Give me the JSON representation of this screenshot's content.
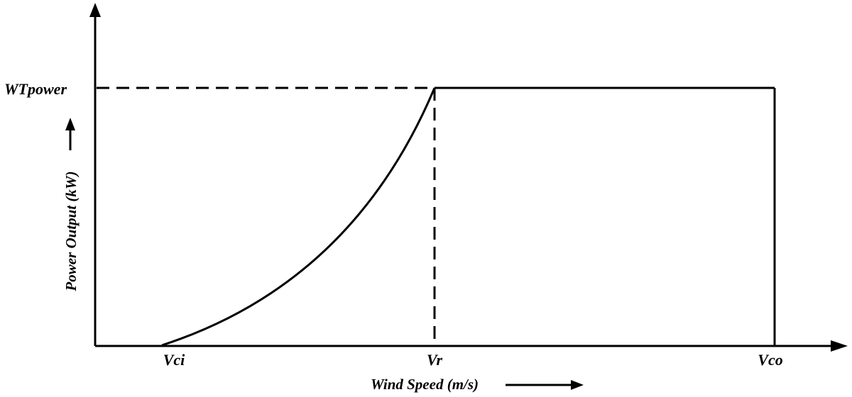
{
  "chart_data": {
    "type": "line",
    "title": "",
    "xlabel": "Wind Speed (m/s)",
    "ylabel": "Power Output (kW)",
    "x_ticks": [
      "Vci",
      "Vr",
      "Vco"
    ],
    "y_ticks": [
      "WTpower"
    ],
    "grid": false,
    "legend": "none",
    "series": [
      {
        "curve": "power-curve",
        "segments": [
          {
            "from": "Vci",
            "to": "Vr",
            "shape": "rising curve",
            "start_level": 0,
            "end_level": "WTpower"
          },
          {
            "from": "Vr",
            "to": "Vco",
            "shape": "constant",
            "level": "WTpower"
          },
          {
            "at": "Vco",
            "shape": "drop",
            "from_level": "WTpower",
            "to_level": 0
          }
        ]
      }
    ],
    "reference_lines": [
      {
        "type": "horizontal",
        "style": "dashed",
        "level": "WTpower",
        "from": "origin",
        "to": "Vr"
      },
      {
        "type": "vertical",
        "style": "dashed",
        "at": "Vr",
        "from": 0,
        "to": "WTpower"
      }
    ],
    "colors": {
      "line": "#000000",
      "background": "#ffffff"
    }
  }
}
